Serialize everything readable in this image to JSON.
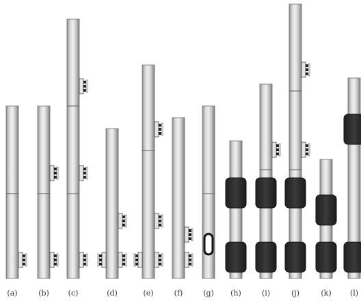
{
  "figure": {
    "panels": [
      {
        "label": "(a)",
        "clamp": "small bolted clamp",
        "sections": 2
      },
      {
        "label": "(b)",
        "clamp": "small bolted clamps",
        "sections": 2
      },
      {
        "label": "(c)",
        "clamp": "small bolted clamps",
        "sections": 3
      },
      {
        "label": "(d)",
        "clamp": "small bolted clamps",
        "sections": 1
      },
      {
        "label": "(e)",
        "clamp": "small bolted clamps",
        "sections": 2
      },
      {
        "label": "(f)",
        "clamp": "small bolted clamps",
        "sections": 1
      },
      {
        "label": "(g)",
        "clamp": "internal ring",
        "sections": 2
      },
      {
        "label": "(h)",
        "clamp": "large block clamps",
        "sections": 1
      },
      {
        "label": "(i)",
        "clamp": "large block clamps",
        "sections": 2
      },
      {
        "label": "(j)",
        "clamp": "large block clamps",
        "sections": 3
      },
      {
        "label": "(k)",
        "clamp": "large block clamps",
        "sections": 1
      },
      {
        "label": "(l)",
        "clamp": "large block clamps",
        "sections": 2
      }
    ],
    "colors": {
      "pipe_light": "#e8e8e8",
      "pipe_mid": "#bdbdbd",
      "pipe_dark": "#8a8a8a",
      "block": "#2b2b2b",
      "label": "#333333"
    }
  }
}
